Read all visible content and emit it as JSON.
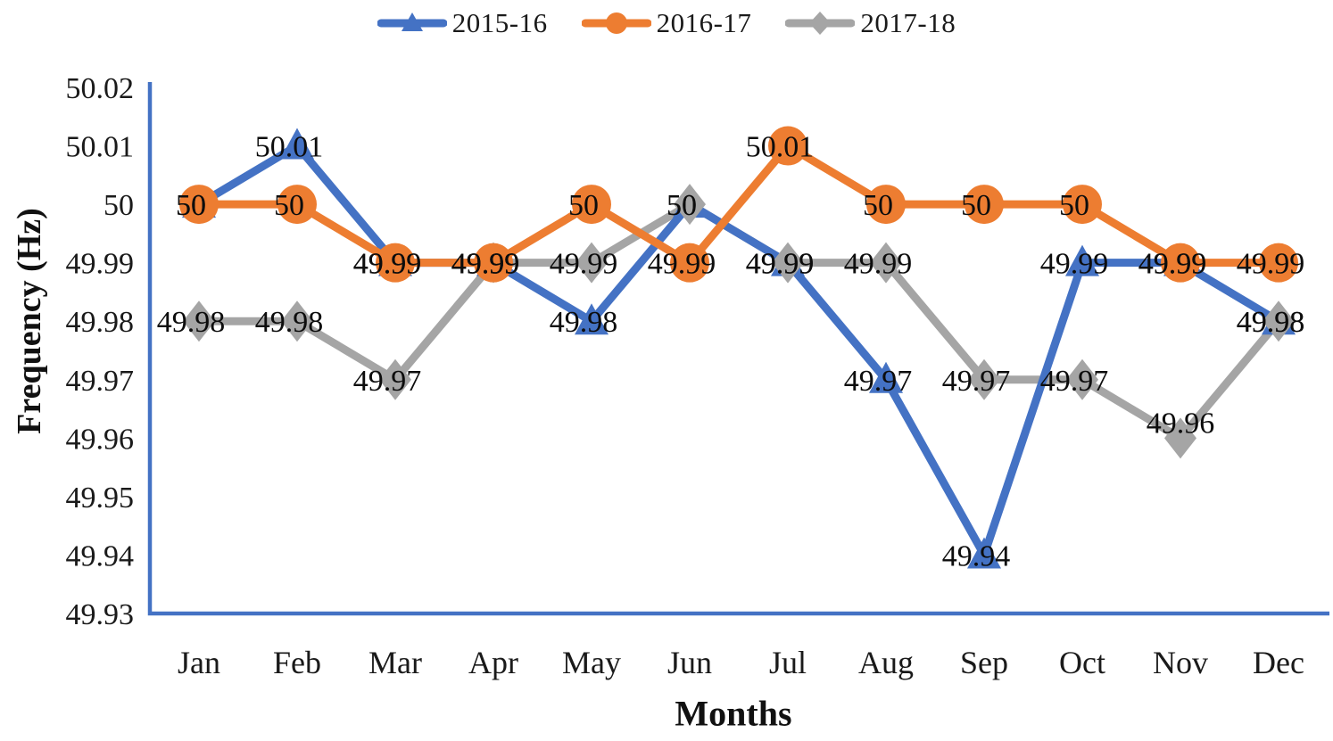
{
  "chart_data": {
    "type": "line",
    "title": "",
    "xlabel": "Months",
    "ylabel": "Frequency (Hz)",
    "categories": [
      "Jan",
      "Feb",
      "Mar",
      "Apr",
      "May",
      "Jun",
      "Jul",
      "Aug",
      "Sep",
      "Oct",
      "Nov",
      "Dec"
    ],
    "series": [
      {
        "name": "2015-16",
        "color": "#4472C4",
        "marker": "triangle",
        "values": [
          50,
          50.01,
          49.99,
          49.99,
          49.98,
          50,
          49.99,
          49.97,
          49.94,
          49.99,
          49.99,
          49.98
        ]
      },
      {
        "name": "2016-17",
        "color": "#ED7D31",
        "marker": "circle",
        "values": [
          50,
          50,
          49.99,
          49.99,
          50,
          49.99,
          50.01,
          50,
          50,
          50,
          49.99,
          49.99
        ]
      },
      {
        "name": "2017-18",
        "color": "#A5A5A5",
        "marker": "diamond",
        "values": [
          49.98,
          49.98,
          49.97,
          49.99,
          49.99,
          50,
          49.99,
          49.99,
          49.97,
          49.97,
          49.96,
          49.98
        ]
      }
    ],
    "y_axis": {
      "min": 49.93,
      "max": 50.02,
      "step": 0.01,
      "tick_labels": [
        "50.02",
        "50.01",
        "50",
        "49.99",
        "49.98",
        "49.97",
        "49.96",
        "49.95",
        "49.94",
        "49.93"
      ]
    },
    "data_labels": true,
    "grid": false,
    "legend_position": "top",
    "axis_color": "#4472C4",
    "text_color": "#1a1a1a",
    "label_color": "#0d0d0d",
    "label_nudges": [
      {
        "series": 2,
        "index": 10,
        "dx": 0,
        "dy": -18
      }
    ]
  }
}
